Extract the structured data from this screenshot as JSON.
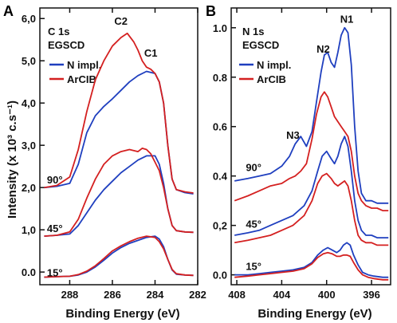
{
  "colors": {
    "n_impl": "#1f3fbf",
    "arcib": "#d42020",
    "axis": "#111111"
  },
  "chart_data": [
    {
      "type": "line",
      "panel_label": "A",
      "title": "C 1s",
      "subtitle": "EGSCD",
      "xlabel": "Binding Energy (eV)",
      "ylabel": "Intensity (x 10³ c.s⁻¹)",
      "x_reversed": true,
      "xlim": [
        289.4,
        282.0
      ],
      "ylim": [
        -0.3,
        6.25
      ],
      "xticks": [
        288,
        286,
        284,
        282
      ],
      "xtick_labels": [
        "288",
        "286",
        "284",
        "282"
      ],
      "yticks": [
        0,
        1,
        2,
        3,
        4,
        5,
        6
      ],
      "ytick_labels": [
        "0.0",
        "1,0",
        "2,0",
        "3,0",
        "4,0",
        "5,0",
        "6,0"
      ],
      "legend": [
        "N impl.",
        "ArCIB"
      ],
      "legend_position": "top-left",
      "annotations": [
        {
          "text": "C2",
          "x": 285.6,
          "y": 5.85
        },
        {
          "text": "C1",
          "x": 284.2,
          "y": 5.1
        },
        {
          "text": "90°",
          "x": 288.7,
          "y": 2.1
        },
        {
          "text": "45°",
          "x": 288.7,
          "y": 0.95
        },
        {
          "text": "15°",
          "x": 288.7,
          "y": -0.1
        }
      ],
      "series": [
        {
          "name": "N impl.",
          "group": "90°",
          "x": [
            289.2,
            288.6,
            288.0,
            287.6,
            287.2,
            286.8,
            286.4,
            286.0,
            285.6,
            285.2,
            284.8,
            284.4,
            284.0,
            283.8,
            283.6,
            283.4,
            283.2,
            283.0,
            282.6,
            282.2
          ],
          "y": [
            2.0,
            2.03,
            2.1,
            2.55,
            3.3,
            3.7,
            3.92,
            4.1,
            4.3,
            4.5,
            4.65,
            4.75,
            4.7,
            4.5,
            4.0,
            3.0,
            2.2,
            1.95,
            1.88,
            1.85
          ]
        },
        {
          "name": "ArCIB",
          "group": "90°",
          "x": [
            289.2,
            288.6,
            288.0,
            287.6,
            287.2,
            286.8,
            286.4,
            286.0,
            285.6,
            285.3,
            285.0,
            284.8,
            284.6,
            284.4,
            284.2,
            284.0,
            283.8,
            283.6,
            283.4,
            283.2,
            283.0,
            282.6,
            282.2
          ],
          "y": [
            2.0,
            2.05,
            2.25,
            2.9,
            3.8,
            4.55,
            5.0,
            5.35,
            5.55,
            5.65,
            5.45,
            5.25,
            5.0,
            4.85,
            4.8,
            4.7,
            4.5,
            4.0,
            3.0,
            2.2,
            1.95,
            1.9,
            1.87
          ]
        },
        {
          "name": "N impl.",
          "group": "45°",
          "x": [
            289.2,
            288.6,
            288.0,
            287.6,
            287.2,
            286.8,
            286.4,
            286.0,
            285.6,
            285.2,
            284.8,
            284.4,
            284.0,
            283.8,
            283.6,
            283.4,
            283.2,
            283.0,
            282.6,
            282.2
          ],
          "y": [
            0.85,
            0.87,
            0.9,
            1.1,
            1.4,
            1.7,
            1.95,
            2.15,
            2.35,
            2.5,
            2.65,
            2.75,
            2.75,
            2.55,
            2.1,
            1.5,
            1.1,
            0.98,
            0.95,
            0.94
          ]
        },
        {
          "name": "ArCIB",
          "group": "45°",
          "x": [
            289.2,
            288.6,
            288.0,
            287.6,
            287.2,
            286.8,
            286.4,
            286.0,
            285.6,
            285.2,
            284.8,
            284.6,
            284.4,
            284.2,
            284.0,
            283.8,
            283.6,
            283.4,
            283.2,
            283.0,
            282.6,
            282.2
          ],
          "y": [
            0.85,
            0.87,
            0.95,
            1.25,
            1.75,
            2.2,
            2.55,
            2.75,
            2.85,
            2.9,
            2.85,
            2.93,
            2.9,
            2.8,
            2.6,
            2.4,
            2.0,
            1.5,
            1.1,
            0.98,
            0.95,
            0.94
          ]
        },
        {
          "name": "N impl.",
          "group": "15°",
          "x": [
            289.2,
            288.6,
            288.0,
            287.6,
            287.2,
            286.8,
            286.4,
            286.0,
            285.6,
            285.2,
            284.8,
            284.4,
            284.0,
            283.8,
            283.6,
            283.4,
            283.2,
            283.0,
            282.6,
            282.2
          ],
          "y": [
            -0.12,
            -0.11,
            -0.1,
            -0.07,
            0.0,
            0.12,
            0.28,
            0.45,
            0.58,
            0.68,
            0.75,
            0.82,
            0.85,
            0.78,
            0.6,
            0.3,
            0.05,
            -0.05,
            -0.07,
            -0.08
          ]
        },
        {
          "name": "ArCIB",
          "group": "15°",
          "x": [
            289.2,
            288.6,
            288.0,
            287.6,
            287.2,
            286.8,
            286.4,
            286.0,
            285.6,
            285.2,
            284.8,
            284.4,
            284.0,
            283.8,
            283.6,
            283.4,
            283.2,
            283.0,
            282.6,
            282.2
          ],
          "y": [
            -0.12,
            -0.11,
            -0.1,
            -0.06,
            0.02,
            0.15,
            0.32,
            0.5,
            0.62,
            0.72,
            0.8,
            0.85,
            0.82,
            0.72,
            0.55,
            0.3,
            0.06,
            -0.04,
            -0.07,
            -0.08
          ]
        }
      ]
    },
    {
      "type": "line",
      "panel_label": "B",
      "title": "N 1s",
      "subtitle": "EGSCD",
      "xlabel": "Binding Energy (eV)",
      "ylabel": "",
      "x_reversed": true,
      "xlim": [
        408.5,
        394.3
      ],
      "ylim": [
        -0.04,
        1.08
      ],
      "xticks": [
        408,
        404,
        400,
        396
      ],
      "xtick_labels": [
        "408",
        "404",
        "400",
        "396"
      ],
      "yticks": [
        0,
        0.2,
        0.4,
        0.6,
        0.8,
        1.0
      ],
      "ytick_labels": [
        "0.0",
        "0,2",
        "0.4",
        "0.6",
        "0.8",
        "1.0"
      ],
      "legend": [
        "N impl.",
        "ArCIB"
      ],
      "legend_position": "top-left",
      "annotations": [
        {
          "text": "N1",
          "x": 398.2,
          "y": 1.02
        },
        {
          "text": "N2",
          "x": 400.3,
          "y": 0.9
        },
        {
          "text": "N3",
          "x": 403.0,
          "y": 0.55
        },
        {
          "text": "90°",
          "x": 406.5,
          "y": 0.42
        },
        {
          "text": "45°",
          "x": 406.5,
          "y": 0.19
        },
        {
          "text": "15°",
          "x": 406.5,
          "y": 0.02
        }
      ],
      "series": [
        {
          "name": "N impl.",
          "group": "90°",
          "x": [
            408.2,
            407.0,
            406.0,
            405.0,
            404.0,
            403.3,
            402.8,
            402.3,
            401.8,
            401.3,
            400.9,
            400.5,
            400.2,
            399.9,
            399.6,
            399.3,
            399.0,
            398.7,
            398.4,
            398.1,
            397.8,
            397.5,
            397.2,
            396.9,
            396.5,
            396.0,
            395.5,
            395.0,
            394.5
          ],
          "y": [
            0.38,
            0.39,
            0.4,
            0.41,
            0.44,
            0.48,
            0.53,
            0.56,
            0.52,
            0.58,
            0.7,
            0.82,
            0.89,
            0.9,
            0.86,
            0.84,
            0.9,
            0.97,
            1.0,
            0.98,
            0.85,
            0.6,
            0.42,
            0.33,
            0.3,
            0.3,
            0.29,
            0.29,
            0.29
          ]
        },
        {
          "name": "ArCIB",
          "group": "90°",
          "x": [
            408.2,
            407.0,
            406.0,
            405.0,
            404.0,
            403.3,
            402.8,
            402.3,
            401.8,
            401.3,
            400.9,
            400.5,
            400.2,
            399.9,
            399.6,
            399.3,
            399.0,
            398.7,
            398.4,
            398.1,
            397.8,
            397.5,
            397.2,
            396.9,
            396.5,
            396.0,
            395.5,
            395.0,
            394.5
          ],
          "y": [
            0.3,
            0.32,
            0.34,
            0.36,
            0.37,
            0.39,
            0.4,
            0.42,
            0.45,
            0.55,
            0.65,
            0.72,
            0.74,
            0.72,
            0.68,
            0.64,
            0.62,
            0.6,
            0.58,
            0.56,
            0.5,
            0.4,
            0.33,
            0.3,
            0.28,
            0.27,
            0.27,
            0.26,
            0.26
          ]
        },
        {
          "name": "N impl.",
          "group": "45°",
          "x": [
            408.2,
            407.0,
            406.0,
            405.0,
            404.0,
            403.0,
            402.0,
            401.3,
            400.8,
            400.4,
            400.0,
            399.6,
            399.3,
            399.0,
            398.7,
            398.4,
            398.1,
            397.8,
            397.5,
            397.2,
            396.9,
            396.5,
            396.0,
            395.5,
            395.0,
            394.5
          ],
          "y": [
            0.16,
            0.17,
            0.18,
            0.2,
            0.22,
            0.24,
            0.28,
            0.34,
            0.42,
            0.48,
            0.5,
            0.47,
            0.45,
            0.48,
            0.53,
            0.56,
            0.52,
            0.42,
            0.3,
            0.22,
            0.18,
            0.16,
            0.16,
            0.15,
            0.15,
            0.15
          ]
        },
        {
          "name": "ArCIB",
          "group": "45°",
          "x": [
            408.2,
            407.0,
            406.0,
            405.0,
            404.0,
            403.0,
            402.0,
            401.3,
            400.8,
            400.4,
            400.0,
            399.6,
            399.3,
            399.0,
            398.7,
            398.4,
            398.1,
            397.8,
            397.5,
            397.2,
            396.9,
            396.5,
            396.0,
            395.5,
            395.0,
            394.5
          ],
          "y": [
            0.13,
            0.14,
            0.15,
            0.16,
            0.18,
            0.2,
            0.24,
            0.3,
            0.37,
            0.4,
            0.41,
            0.39,
            0.37,
            0.36,
            0.37,
            0.38,
            0.36,
            0.3,
            0.22,
            0.16,
            0.14,
            0.13,
            0.13,
            0.12,
            0.12,
            0.12
          ]
        },
        {
          "name": "N impl.",
          "group": "15°",
          "x": [
            408.2,
            407.0,
            406.0,
            405.0,
            404.0,
            403.0,
            402.0,
            401.3,
            400.8,
            400.3,
            399.9,
            399.5,
            399.1,
            398.8,
            398.5,
            398.2,
            397.9,
            397.6,
            397.2,
            396.8,
            396.3,
            395.8,
            395.0,
            394.5
          ],
          "y": [
            0.0,
            0.0,
            0.005,
            0.01,
            0.015,
            0.02,
            0.03,
            0.05,
            0.08,
            0.1,
            0.11,
            0.1,
            0.09,
            0.1,
            0.12,
            0.13,
            0.12,
            0.08,
            0.04,
            0.01,
            0.0,
            -0.005,
            -0.01,
            -0.01
          ]
        },
        {
          "name": "ArCIB",
          "group": "15°",
          "x": [
            408.2,
            407.0,
            406.0,
            405.0,
            404.0,
            403.0,
            402.0,
            401.3,
            400.8,
            400.3,
            399.9,
            399.5,
            399.1,
            398.8,
            398.5,
            398.2,
            397.9,
            397.6,
            397.2,
            396.8,
            396.3,
            395.8,
            395.0,
            394.5
          ],
          "y": [
            -0.01,
            -0.005,
            0.0,
            0.005,
            0.01,
            0.015,
            0.025,
            0.045,
            0.07,
            0.085,
            0.09,
            0.085,
            0.075,
            0.075,
            0.08,
            0.08,
            0.075,
            0.05,
            0.02,
            0.0,
            -0.01,
            -0.015,
            -0.02,
            -0.02
          ]
        }
      ]
    }
  ]
}
